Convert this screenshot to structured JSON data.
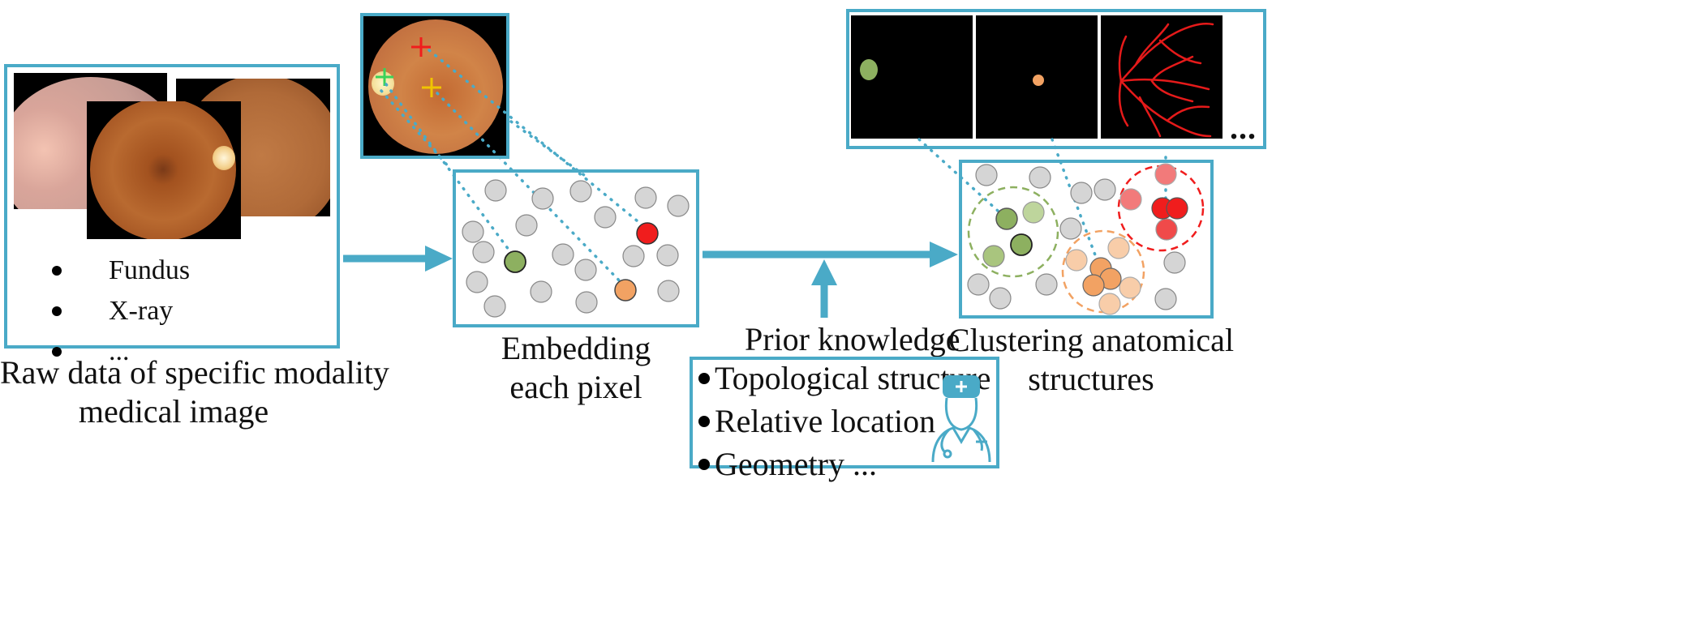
{
  "raw_panel": {
    "modalities": [
      "Fundus",
      "X-ray",
      "..."
    ],
    "caption_line1": "Raw data of specific modality",
    "caption_line2": "medical image"
  },
  "embedding": {
    "caption_line1": "Embedding",
    "caption_line2": "each pixel"
  },
  "prior": {
    "title": "Prior knowledge",
    "items": [
      "Topological structure",
      "Relative location",
      "Geometry ..."
    ]
  },
  "clustering": {
    "caption_line1": "Clustering anatomical",
    "caption_line2": "structures"
  },
  "masks": {
    "ellipsis": "..."
  },
  "colors": {
    "accent": "#4aaac7",
    "green": "#8db060",
    "orange": "#f2a263",
    "red": "#f01d1d",
    "gray": "#d5d5d5"
  }
}
